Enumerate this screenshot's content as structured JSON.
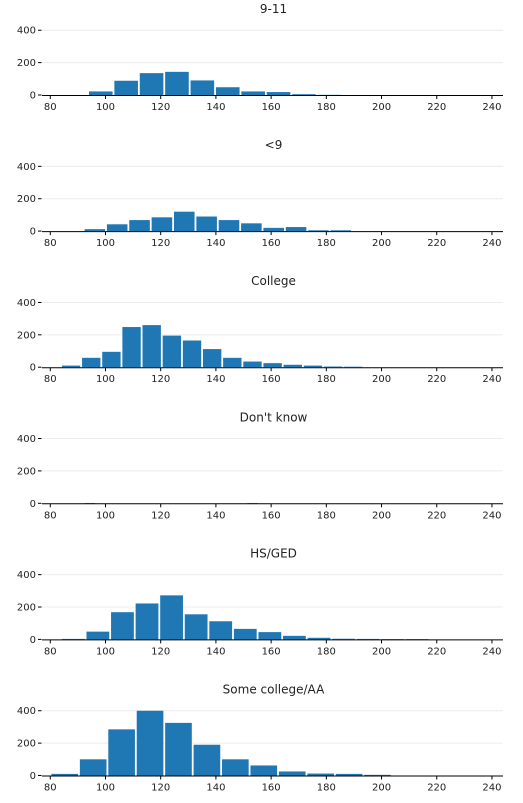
{
  "chart_data": [
    {
      "type": "bar",
      "title": "9-11",
      "xticks": [
        80,
        100,
        120,
        140,
        160,
        180,
        200,
        220,
        240
      ],
      "yticks": [
        0,
        200,
        400
      ],
      "xlim": [
        77,
        244
      ],
      "ylim": [
        0,
        420
      ],
      "grid": "y",
      "bins": [
        {
          "x0": 93.8,
          "x1": 103.0,
          "value": 22
        },
        {
          "x0": 103.0,
          "x1": 112.2,
          "value": 88
        },
        {
          "x0": 112.2,
          "x1": 121.4,
          "value": 135
        },
        {
          "x0": 121.4,
          "x1": 130.6,
          "value": 143
        },
        {
          "x0": 130.6,
          "x1": 139.8,
          "value": 90
        },
        {
          "x0": 139.8,
          "x1": 149.0,
          "value": 48
        },
        {
          "x0": 149.0,
          "x1": 158.2,
          "value": 22
        },
        {
          "x0": 158.2,
          "x1": 167.4,
          "value": 18
        },
        {
          "x0": 167.4,
          "x1": 176.6,
          "value": 5
        },
        {
          "x0": 176.6,
          "x1": 185.8,
          "value": 1
        }
      ]
    },
    {
      "type": "bar",
      "title": "<9",
      "xticks": [
        80,
        100,
        120,
        140,
        160,
        180,
        200,
        220,
        240
      ],
      "yticks": [
        0,
        200,
        400
      ],
      "xlim": [
        77,
        244
      ],
      "ylim": [
        0,
        420
      ],
      "grid": "y",
      "bins": [
        {
          "x0": 92.2,
          "x1": 100.3,
          "value": 12
        },
        {
          "x0": 100.3,
          "x1": 108.4,
          "value": 42
        },
        {
          "x0": 108.4,
          "x1": 116.5,
          "value": 68
        },
        {
          "x0": 116.5,
          "x1": 124.6,
          "value": 85
        },
        {
          "x0": 124.6,
          "x1": 132.7,
          "value": 120
        },
        {
          "x0": 132.7,
          "x1": 140.8,
          "value": 90
        },
        {
          "x0": 140.8,
          "x1": 148.9,
          "value": 68
        },
        {
          "x0": 148.9,
          "x1": 157.0,
          "value": 48
        },
        {
          "x0": 157.0,
          "x1": 165.1,
          "value": 20
        },
        {
          "x0": 165.1,
          "x1": 173.2,
          "value": 25
        },
        {
          "x0": 173.2,
          "x1": 181.3,
          "value": 5
        },
        {
          "x0": 181.3,
          "x1": 189.4,
          "value": 5
        }
      ]
    },
    {
      "type": "bar",
      "title": "College",
      "xticks": [
        80,
        100,
        120,
        140,
        160,
        180,
        200,
        220,
        240
      ],
      "yticks": [
        0,
        200,
        400
      ],
      "xlim": [
        77,
        244
      ],
      "ylim": [
        0,
        420
      ],
      "grid": "y",
      "bins": [
        {
          "x0": 84.0,
          "x1": 91.3,
          "value": 10
        },
        {
          "x0": 91.3,
          "x1": 98.6,
          "value": 58
        },
        {
          "x0": 98.6,
          "x1": 105.9,
          "value": 95
        },
        {
          "x0": 105.9,
          "x1": 113.2,
          "value": 248
        },
        {
          "x0": 113.2,
          "x1": 120.5,
          "value": 260
        },
        {
          "x0": 120.5,
          "x1": 127.8,
          "value": 195
        },
        {
          "x0": 127.8,
          "x1": 135.1,
          "value": 165
        },
        {
          "x0": 135.1,
          "x1": 142.4,
          "value": 112
        },
        {
          "x0": 142.4,
          "x1": 149.7,
          "value": 58
        },
        {
          "x0": 149.7,
          "x1": 157.0,
          "value": 35
        },
        {
          "x0": 157.0,
          "x1": 164.3,
          "value": 25
        },
        {
          "x0": 164.3,
          "x1": 171.6,
          "value": 15
        },
        {
          "x0": 171.6,
          "x1": 178.9,
          "value": 10
        },
        {
          "x0": 178.9,
          "x1": 186.2,
          "value": 4
        },
        {
          "x0": 186.2,
          "x1": 193.5,
          "value": 3
        }
      ]
    },
    {
      "type": "bar",
      "title": "Don't know",
      "xticks": [
        80,
        100,
        120,
        140,
        160,
        180,
        200,
        220,
        240
      ],
      "yticks": [
        0,
        200,
        400
      ],
      "xlim": [
        77,
        244
      ],
      "ylim": [
        0,
        420
      ],
      "grid": "y",
      "bins": [
        {
          "x0": 92.2,
          "x1": 96.6,
          "value": 2
        },
        {
          "x0": 151.2,
          "x1": 155.6,
          "value": 2
        }
      ]
    },
    {
      "type": "bar",
      "title": "HS/GED",
      "xticks": [
        80,
        100,
        120,
        140,
        160,
        180,
        200,
        220,
        240
      ],
      "yticks": [
        0,
        200,
        400
      ],
      "xlim": [
        77,
        244
      ],
      "ylim": [
        0,
        420
      ],
      "grid": "y",
      "bins": [
        {
          "x0": 84.0,
          "x1": 92.9,
          "value": 3
        },
        {
          "x0": 92.9,
          "x1": 101.8,
          "value": 48
        },
        {
          "x0": 101.8,
          "x1": 110.7,
          "value": 168
        },
        {
          "x0": 110.7,
          "x1": 119.6,
          "value": 222
        },
        {
          "x0": 119.6,
          "x1": 128.5,
          "value": 272
        },
        {
          "x0": 128.5,
          "x1": 137.4,
          "value": 155
        },
        {
          "x0": 137.4,
          "x1": 146.3,
          "value": 112
        },
        {
          "x0": 146.3,
          "x1": 155.2,
          "value": 65
        },
        {
          "x0": 155.2,
          "x1": 164.1,
          "value": 45
        },
        {
          "x0": 164.1,
          "x1": 173.0,
          "value": 22
        },
        {
          "x0": 173.0,
          "x1": 181.9,
          "value": 10
        },
        {
          "x0": 181.9,
          "x1": 190.8,
          "value": 4
        },
        {
          "x0": 190.8,
          "x1": 199.7,
          "value": 3
        },
        {
          "x0": 199.7,
          "x1": 208.6,
          "value": 2
        },
        {
          "x0": 208.6,
          "x1": 217.5,
          "value": 2
        }
      ]
    },
    {
      "type": "bar",
      "title": "Some college/AA",
      "xticks": [
        80,
        100,
        120,
        140,
        160,
        180,
        200,
        220,
        240
      ],
      "yticks": [
        0,
        200,
        400
      ],
      "xlim": [
        77,
        244
      ],
      "ylim": [
        0,
        420
      ],
      "grid": "y",
      "bins": [
        {
          "x0": 80.2,
          "x1": 90.5,
          "value": 10
        },
        {
          "x0": 90.5,
          "x1": 100.8,
          "value": 100
        },
        {
          "x0": 100.8,
          "x1": 111.1,
          "value": 285
        },
        {
          "x0": 111.1,
          "x1": 121.4,
          "value": 400
        },
        {
          "x0": 121.4,
          "x1": 131.7,
          "value": 325
        },
        {
          "x0": 131.7,
          "x1": 142.0,
          "value": 190
        },
        {
          "x0": 142.0,
          "x1": 152.3,
          "value": 100
        },
        {
          "x0": 152.3,
          "x1": 162.6,
          "value": 62
        },
        {
          "x0": 162.6,
          "x1": 172.9,
          "value": 25
        },
        {
          "x0": 172.9,
          "x1": 183.2,
          "value": 12
        },
        {
          "x0": 183.2,
          "x1": 193.5,
          "value": 10
        },
        {
          "x0": 193.5,
          "x1": 203.8,
          "value": 4
        }
      ]
    }
  ],
  "colors": {
    "bar": "#1f77b4",
    "grid": "#ececec",
    "axis": "#000000",
    "text": "#222222"
  }
}
